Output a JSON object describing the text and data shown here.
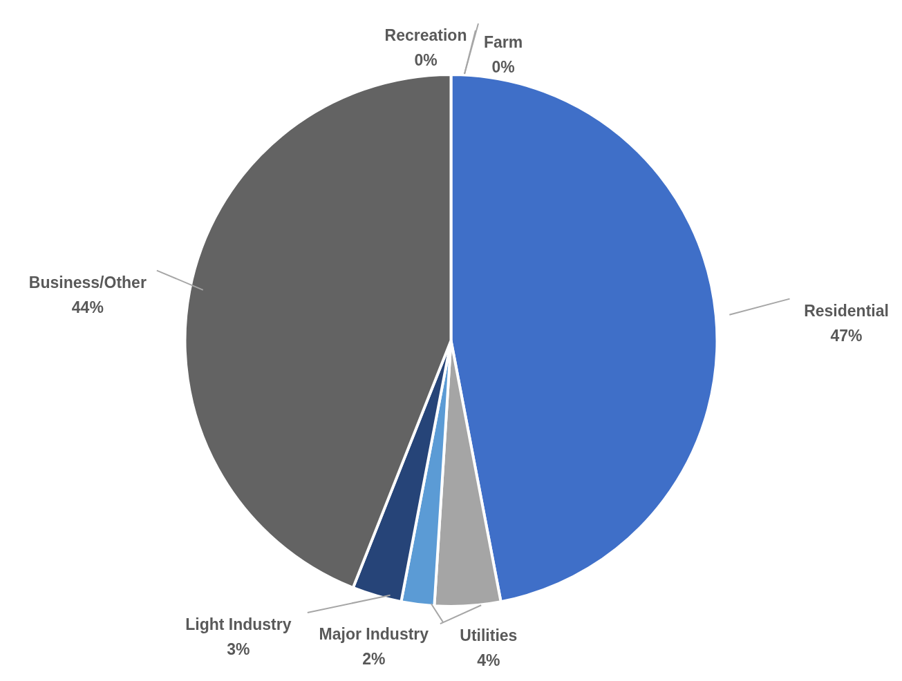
{
  "chart_data": {
    "type": "pie",
    "categories": [
      "Residential",
      "Utilities",
      "Major Industry",
      "Light Industry",
      "Business/Other",
      "Recreation",
      "Farm"
    ],
    "values": [
      47,
      4,
      2,
      3,
      44,
      0,
      0
    ],
    "colors": [
      "#3f6fc8",
      "#a5a5a5",
      "#5b9bd5",
      "#264478",
      "#636363",
      "#9e480e",
      "#70ad47"
    ],
    "value_labels": [
      "47%",
      "4%",
      "2%",
      "3%",
      "44%",
      "0%",
      "0%"
    ]
  }
}
